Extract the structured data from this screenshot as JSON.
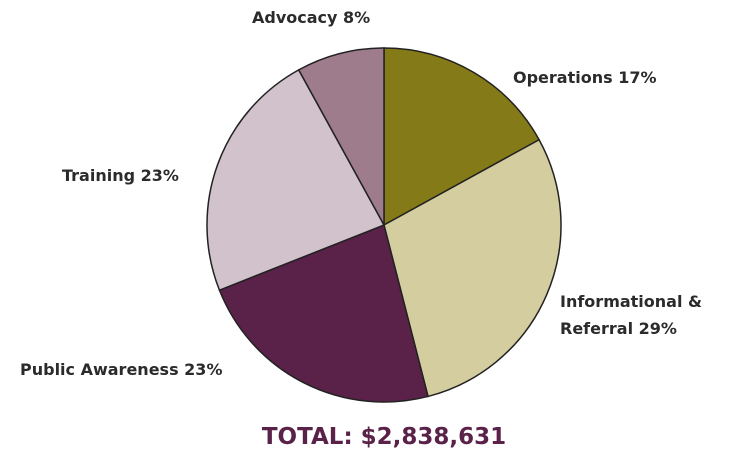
{
  "chart_data": {
    "type": "pie",
    "categories": [
      "Operations",
      "Informational & Referral",
      "Public Awareness",
      "Training",
      "Advocacy"
    ],
    "values": [
      17,
      29,
      23,
      23,
      8
    ],
    "value_labels": [
      "17%",
      "29%",
      "23%",
      "23%",
      "8%"
    ],
    "colors": [
      "#857a18",
      "#d3cd9f",
      "#5a2149",
      "#d2c2cb",
      "#9e7c8b"
    ],
    "total": "TOTAL: $2,838,631"
  }
}
